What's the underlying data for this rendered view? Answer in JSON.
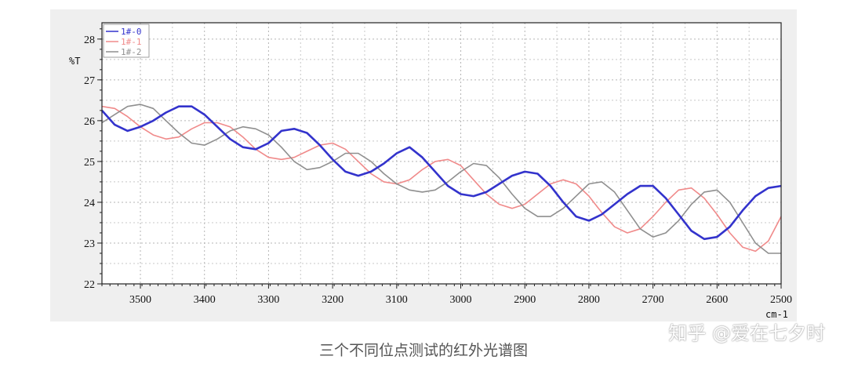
{
  "chart_data": {
    "type": "line",
    "ylabel": "%T",
    "xunit": "cm-1",
    "xlim": [
      3560,
      2500
    ],
    "ylim": [
      22,
      28.4
    ],
    "x_ticks": [
      3500,
      3400,
      3300,
      3200,
      3100,
      3000,
      2900,
      2800,
      2700,
      2600,
      2500
    ],
    "y_ticks": [
      22,
      23,
      24,
      25,
      26,
      27,
      28
    ],
    "grid": true,
    "legend_position": "top-left",
    "series": [
      {
        "name": "1#-0",
        "color": "#3333cc",
        "x": [
          3560,
          3540,
          3520,
          3500,
          3480,
          3460,
          3440,
          3420,
          3400,
          3380,
          3360,
          3340,
          3320,
          3300,
          3280,
          3260,
          3240,
          3220,
          3200,
          3180,
          3160,
          3140,
          3120,
          3100,
          3080,
          3060,
          3040,
          3020,
          3000,
          2980,
          2960,
          2940,
          2920,
          2900,
          2880,
          2860,
          2840,
          2820,
          2800,
          2780,
          2760,
          2740,
          2720,
          2700,
          2680,
          2660,
          2640,
          2620,
          2600,
          2580,
          2560,
          2540,
          2520,
          2500
        ],
        "y": [
          26.25,
          25.9,
          25.75,
          25.85,
          26.0,
          26.2,
          26.35,
          26.35,
          26.15,
          25.85,
          25.55,
          25.35,
          25.3,
          25.45,
          25.75,
          25.8,
          25.7,
          25.4,
          25.05,
          24.75,
          24.65,
          24.75,
          24.95,
          25.2,
          25.35,
          25.1,
          24.75,
          24.4,
          24.2,
          24.15,
          24.25,
          24.45,
          24.65,
          24.75,
          24.7,
          24.4,
          24.0,
          23.65,
          23.55,
          23.7,
          23.95,
          24.2,
          24.4,
          24.4,
          24.1,
          23.7,
          23.3,
          23.1,
          23.15,
          23.4,
          23.8,
          24.15,
          24.35,
          24.4
        ]
      },
      {
        "name": "1#-1",
        "color": "#f08a8a",
        "x": [
          3560,
          3540,
          3520,
          3500,
          3480,
          3460,
          3440,
          3420,
          3400,
          3380,
          3360,
          3340,
          3320,
          3300,
          3280,
          3260,
          3240,
          3220,
          3200,
          3180,
          3160,
          3140,
          3120,
          3100,
          3080,
          3060,
          3040,
          3020,
          3000,
          2980,
          2960,
          2940,
          2920,
          2900,
          2880,
          2860,
          2840,
          2820,
          2800,
          2780,
          2760,
          2740,
          2720,
          2700,
          2680,
          2660,
          2640,
          2620,
          2600,
          2580,
          2560,
          2540,
          2520,
          2500
        ],
        "y": [
          26.35,
          26.3,
          26.1,
          25.85,
          25.65,
          25.55,
          25.6,
          25.8,
          25.95,
          25.95,
          25.85,
          25.6,
          25.3,
          25.1,
          25.05,
          25.1,
          25.25,
          25.4,
          25.45,
          25.3,
          25.0,
          24.7,
          24.5,
          24.45,
          24.55,
          24.8,
          25.0,
          25.05,
          24.9,
          24.55,
          24.2,
          23.95,
          23.85,
          23.95,
          24.2,
          24.45,
          24.55,
          24.45,
          24.15,
          23.75,
          23.4,
          23.25,
          23.35,
          23.65,
          24.0,
          24.3,
          24.35,
          24.1,
          23.7,
          23.25,
          22.9,
          22.8,
          23.05,
          23.65
        ]
      },
      {
        "name": "1#-2",
        "color": "#8f8f8f",
        "x": [
          3560,
          3540,
          3520,
          3500,
          3480,
          3460,
          3440,
          3420,
          3400,
          3380,
          3360,
          3340,
          3320,
          3300,
          3280,
          3260,
          3240,
          3220,
          3200,
          3180,
          3160,
          3140,
          3120,
          3100,
          3080,
          3060,
          3040,
          3020,
          3000,
          2980,
          2960,
          2940,
          2920,
          2900,
          2880,
          2860,
          2840,
          2820,
          2800,
          2780,
          2760,
          2740,
          2720,
          2700,
          2680,
          2660,
          2640,
          2620,
          2600,
          2580,
          2560,
          2540,
          2520,
          2500
        ],
        "y": [
          25.95,
          26.15,
          26.35,
          26.4,
          26.3,
          26.0,
          25.7,
          25.45,
          25.4,
          25.55,
          25.75,
          25.85,
          25.8,
          25.65,
          25.35,
          25.0,
          24.8,
          24.85,
          25.0,
          25.2,
          25.2,
          25.0,
          24.7,
          24.45,
          24.3,
          24.25,
          24.3,
          24.5,
          24.75,
          24.95,
          24.9,
          24.6,
          24.2,
          23.85,
          23.65,
          23.65,
          23.85,
          24.15,
          24.45,
          24.5,
          24.25,
          23.8,
          23.35,
          23.15,
          23.25,
          23.55,
          23.95,
          24.25,
          24.3,
          24.0,
          23.5,
          23.0,
          22.75,
          22.75
        ]
      }
    ]
  },
  "caption": "三个不同位点测试的红外光谱图",
  "watermark": "知乎 @爱在七夕时"
}
